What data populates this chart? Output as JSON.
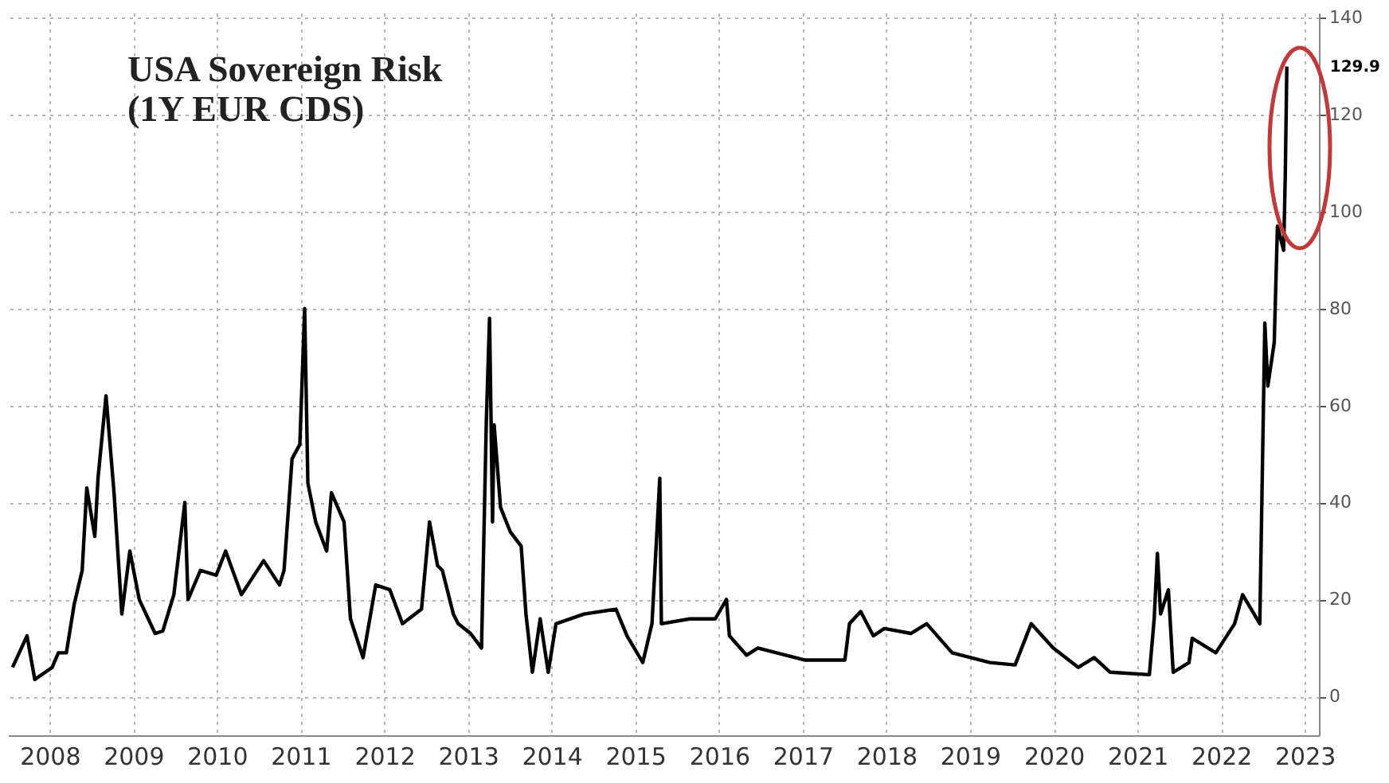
{
  "chart_data": {
    "type": "line",
    "title": "USA Sovereign Risk",
    "subtitle": "(1Y EUR CDS)",
    "x": [
      "2008-01-21",
      "2008-03-24",
      "2008-04-27",
      "2008-07-12",
      "2008-08-08",
      "2008-09-12",
      "2008-10-16",
      "2008-11-20",
      "2008-12-10",
      "2009-01-14",
      "2009-01-28",
      "2009-03-04",
      "2009-04-08",
      "2009-05-12",
      "2009-06-16",
      "2009-07-27",
      "2009-10-04",
      "2009-11-07",
      "2009-12-25",
      "2010-02-11",
      "2010-02-25",
      "2010-04-20",
      "2010-06-28",
      "2010-08-08",
      "2010-10-16",
      "2011-01-21",
      "2011-03-31",
      "2011-04-20",
      "2011-05-25",
      "2011-06-28",
      "2011-07-19",
      "2011-08-02",
      "2011-09-05",
      "2011-10-23",
      "2011-11-13",
      "2012-01-07",
      "2012-02-04",
      "2012-03-30",
      "2012-05-24",
      "2012-07-25",
      "2012-09-18",
      "2012-12-10",
      "2013-01-14",
      "2013-02-18",
      "2013-03-11",
      "2013-04-28",
      "2013-05-19",
      "2013-07-12",
      "2013-08-29",
      "2013-09-19",
      "2013-10-03",
      "2013-10-16",
      "2013-10-23",
      "2013-11-20",
      "2014-01-01",
      "2014-02-18",
      "2014-03-11",
      "2014-04-08",
      "2014-05-12",
      "2014-06-16",
      "2014-07-20",
      "2014-11-20",
      "2015-04-08",
      "2015-05-26",
      "2015-08-03",
      "2015-09-12",
      "2015-10-16",
      "2015-10-23",
      "2016-02-24",
      "2016-06-14",
      "2016-08-02",
      "2016-08-15",
      "2016-10-29",
      "2016-12-17",
      "2017-07-12",
      "2018-01-01",
      "2018-01-21",
      "2018-03-11",
      "2018-05-05",
      "2018-06-22",
      "2018-10-16",
      "2018-12-24",
      "2019-04-14",
      "2019-09-26",
      "2020-01-14",
      "2020-03-24",
      "2020-06-28",
      "2020-10-16",
      "2020-12-24",
      "2021-03-04",
      "2021-08-22",
      "2021-09-12",
      "2021-09-26",
      "2021-10-10",
      "2021-11-13",
      "2021-12-04",
      "2022-02-11",
      "2022-02-25",
      "2022-06-08",
      "2022-08-29",
      "2022-10-03",
      "2022-12-17",
      "2023-01-08",
      "2023-01-21",
      "2023-02-18",
      "2023-03-04",
      "2023-03-31",
      "2023-04-07",
      "2023-04-14"
    ],
    "series": [
      {
        "color": "#000000",
        "values": [
          6,
          12.5,
          3.5,
          6,
          9,
          9,
          19,
          26,
          43,
          33,
          45,
          62,
          42,
          17,
          30,
          20,
          13,
          13.5,
          21,
          40,
          20,
          26,
          25,
          30,
          21,
          28,
          23,
          26,
          49,
          52,
          80,
          44,
          36,
          30,
          42,
          36,
          16,
          8,
          23,
          22,
          15,
          18,
          36,
          27,
          26,
          17,
          15,
          13,
          10,
          57,
          78,
          36,
          56,
          39,
          34,
          31,
          17,
          5,
          16,
          5,
          15,
          17,
          18,
          12.5,
          7,
          15,
          45,
          15,
          16,
          16,
          20,
          12.5,
          8.5,
          10,
          7.5,
          7.5,
          15,
          17.5,
          12.5,
          14,
          13,
          15,
          9,
          7,
          6.5,
          15,
          10,
          6,
          8,
          5,
          4.5,
          16,
          29.5,
          17,
          22,
          5,
          7,
          12,
          9,
          15,
          21,
          15,
          77,
          64,
          73,
          97,
          92,
          107,
          129.9
        ]
      }
    ],
    "xlim": [
      "2008-01-01",
      "2023-09-01"
    ],
    "xticks": [
      {
        "value": "2008-07-01",
        "label": "2008"
      },
      {
        "value": "2009-07-01",
        "label": "2009"
      },
      {
        "value": "2010-07-01",
        "label": "2010"
      },
      {
        "value": "2011-07-01",
        "label": "2011"
      },
      {
        "value": "2012-07-01",
        "label": "2012"
      },
      {
        "value": "2013-07-01",
        "label": "2013"
      },
      {
        "value": "2014-07-01",
        "label": "2014"
      },
      {
        "value": "2015-07-01",
        "label": "2015"
      },
      {
        "value": "2016-07-01",
        "label": "2016"
      },
      {
        "value": "2017-07-01",
        "label": "2017"
      },
      {
        "value": "2018-07-01",
        "label": "2018"
      },
      {
        "value": "2019-07-01",
        "label": "2019"
      },
      {
        "value": "2020-07-01",
        "label": "2020"
      },
      {
        "value": "2021-07-01",
        "label": "2021"
      },
      {
        "value": "2022-07-01",
        "label": "2022"
      },
      {
        "value": "2023-07-01",
        "label": "2023"
      }
    ],
    "ylim": [
      -8,
      141
    ],
    "yticks": [
      0,
      20,
      40,
      60,
      80,
      100,
      120,
      140
    ],
    "grid": true,
    "annotations": [
      {
        "text": "129.9",
        "x": "2023-04-14",
        "y": 129.9
      }
    ]
  }
}
